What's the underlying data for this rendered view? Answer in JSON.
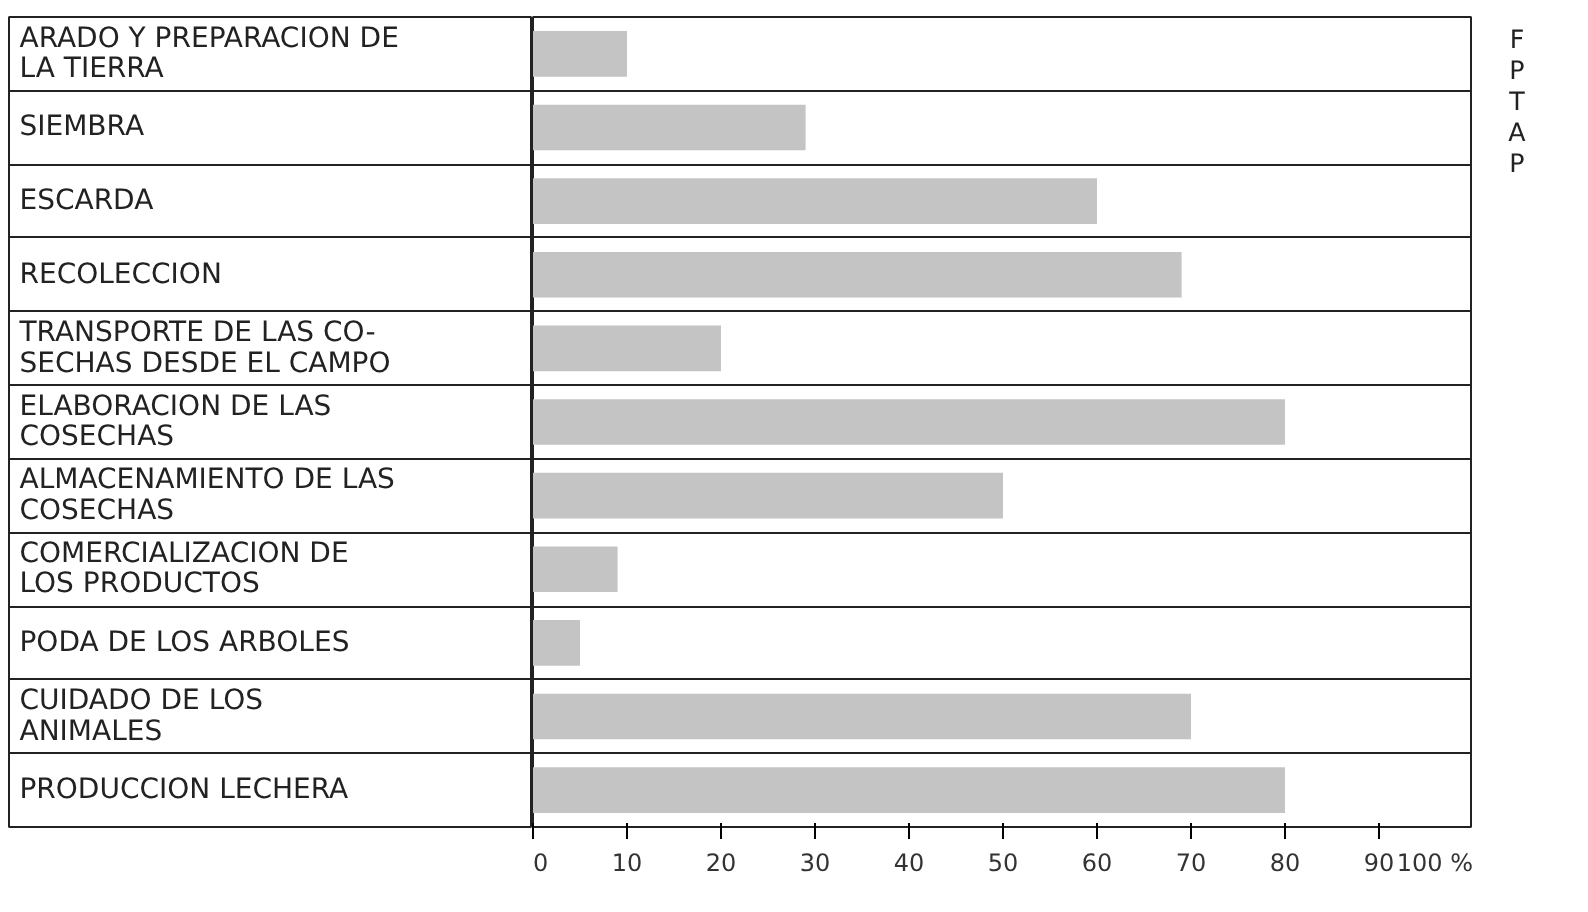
{
  "chart_data": {
    "type": "bar",
    "orientation": "horizontal",
    "categories": [
      "ARADO Y PREPARACION DE LA TIERRA",
      "SIEMBRA",
      "ESCARDA",
      "RECOLECCION",
      "TRANSPORTE DE LAS CO- SECHAS DESDE EL CAMPO",
      "ELABORACION DE LAS COSECHAS",
      "ALMACENAMIENTO DE LAS COSECHAS",
      "COMERCIALIZACION DE LOS PRODUCTOS",
      "PODA DE LOS ARBOLES",
      "CUIDADO DE LOS ANIMALES",
      "PRODUCCION LECHERA"
    ],
    "values": [
      10,
      29,
      60,
      69,
      20,
      80,
      50,
      9,
      5,
      70,
      80
    ],
    "color": "#c4c4c4",
    "xlim": [
      0,
      100
    ],
    "xticks": [
      0,
      10,
      20,
      30,
      40,
      50,
      60,
      70,
      80,
      90,
      {
        "value": 100,
        "label": "100 %"
      }
    ],
    "grid": "y",
    "annotations": [
      "F",
      "P",
      "T",
      "A",
      "P"
    ]
  }
}
